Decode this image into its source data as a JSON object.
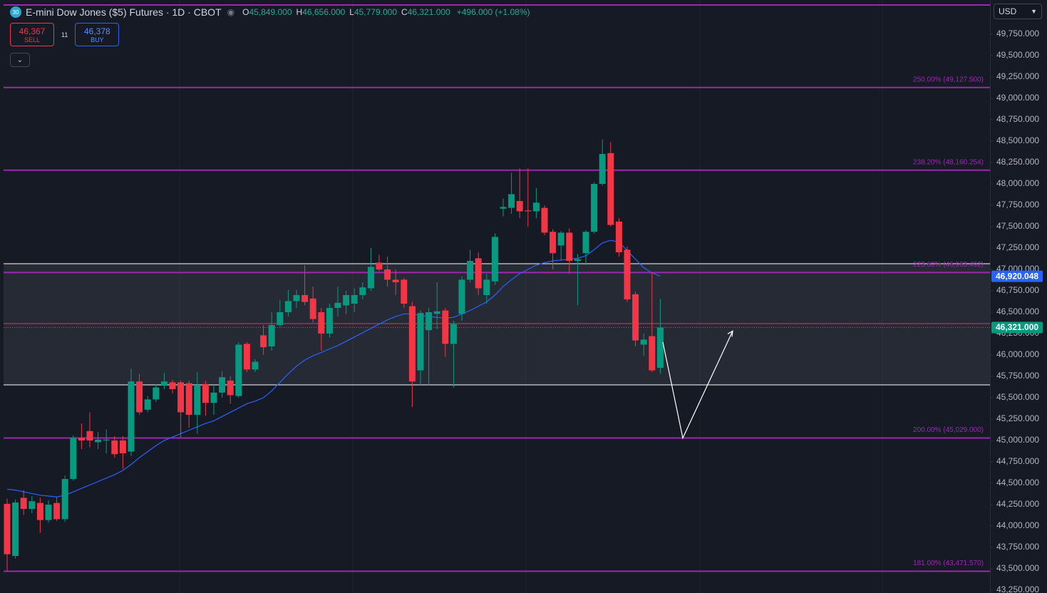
{
  "chart_data": {
    "type": "candlestick",
    "title": "E-mini Dow Jones ($5) Futures · 1D · CBOT",
    "symbol_badge": "30",
    "header_values": [
      {
        "key": "O",
        "value": 45849,
        "label": "45,849.000"
      },
      {
        "key": "H",
        "value": 46656,
        "label": "46,656.000"
      },
      {
        "key": "L",
        "value": 45779,
        "label": "45,779.000"
      },
      {
        "key": "C",
        "value": 46321,
        "label": "46,321.000"
      }
    ],
    "change_label": "+496.000 (+1.08%)",
    "sell": {
      "value": 46367,
      "label": "46,367",
      "text": "SELL"
    },
    "buy": {
      "value": 46378,
      "label": "46,378",
      "text": "BUY"
    },
    "spread": "11",
    "currency": "USD",
    "collapse_icon": "⌄",
    "colors": {
      "up": "#089981",
      "down": "#f23645",
      "line": "#2962ff",
      "level": "#9c27b0",
      "zone": "#ffffff"
    },
    "open": [
      44260,
      43650,
      44330,
      44200,
      44270,
      44070,
      44270,
      44080,
      44550,
      45030,
      45110,
      44980,
      45000,
      45000,
      45000,
      44870,
      45690,
      45360,
      45480,
      45640,
      45680,
      45680,
      45670,
      45300,
      45660,
      45440,
      45560,
      45700,
      45520,
      46130,
      45830,
      46230,
      46100,
      46350,
      46500,
      46630,
      46700,
      46660,
      46500,
      46250,
      46550,
      46580,
      46600,
      46700,
      46780,
      47080,
      47000,
      46880,
      46880,
      46570,
      45820,
      46290,
      46480,
      46520,
      46130,
      46480,
      46880,
      47130,
      46700,
      46860,
      47710,
      47720,
      47800,
      47690,
      47680,
      47720,
      47440,
      47280,
      47430,
      47100,
      47190,
      47440,
      48000,
      48360,
      47560,
      47230,
      46710,
      46120,
      46220,
      45849
    ],
    "high": [
      44320,
      44310,
      44420,
      44350,
      44330,
      44300,
      44340,
      44590,
      45060,
      45200,
      45330,
      45100,
      45130,
      45050,
      45050,
      45840,
      45780,
      45520,
      45660,
      45790,
      45710,
      45700,
      45700,
      45800,
      45700,
      45650,
      45810,
      45750,
      46150,
      46150,
      45950,
      46350,
      46500,
      46640,
      46760,
      46760,
      47050,
      46800,
      46550,
      46600,
      46800,
      46750,
      46780,
      46850,
      47250,
      47170,
      47150,
      47000,
      46900,
      46620,
      46520,
      46550,
      46850,
      46550,
      46400,
      46920,
      47230,
      47200,
      46950,
      47420,
      47830,
      48130,
      48180,
      48180,
      47950,
      47750,
      47470,
      47450,
      47480,
      47180,
      47460,
      48020,
      48520,
      48490,
      47600,
      47270,
      46740,
      46250,
      46970,
      46656
    ],
    "low": [
      43480,
      43620,
      44130,
      44150,
      43920,
      44040,
      44060,
      44050,
      44530,
      44900,
      44920,
      44900,
      44850,
      44800,
      44670,
      44820,
      45300,
      45330,
      45450,
      45600,
      45550,
      45030,
      45150,
      45080,
      45290,
      45300,
      45500,
      45430,
      45500,
      45800,
      45800,
      46000,
      46050,
      46330,
      46450,
      46550,
      46580,
      46380,
      46050,
      46200,
      46450,
      46480,
      46500,
      46650,
      46750,
      46980,
      46800,
      46700,
      46550,
      45390,
      45640,
      45650,
      46300,
      45980,
      45620,
      46400,
      46850,
      46700,
      46600,
      46820,
      47620,
      47650,
      47600,
      47500,
      47600,
      47400,
      47000,
      47100,
      46950,
      46580,
      47050,
      47420,
      47980,
      47500,
      47150,
      46620,
      46100,
      45990,
      45800,
      45779
    ],
    "close": [
      43670,
      44275,
      44200,
      44290,
      44070,
      44250,
      44080,
      44550,
      45030,
      45000,
      45000,
      45010,
      45010,
      44840,
      44850,
      45690,
      45330,
      45480,
      45620,
      45690,
      45600,
      45330,
      45300,
      45650,
      45440,
      45560,
      45740,
      45530,
      46120,
      45830,
      45920,
      46090,
      46350,
      46500,
      46630,
      46700,
      46620,
      46420,
      46250,
      46550,
      46610,
      46700,
      46700,
      46790,
      47030,
      47000,
      46880,
      46850,
      46600,
      45690,
      46490,
      46500,
      46510,
      46130,
      46360,
      46880,
      47100,
      46780,
      46880,
      47380,
      47730,
      47880,
      47680,
      47680,
      47780,
      47430,
      47190,
      47430,
      47100,
      47120,
      47440,
      48000,
      48350,
      47520,
      47200,
      46650,
      46170,
      46180,
      45820,
      46321
    ],
    "moving_average": {
      "values": [
        44430,
        44420,
        44400,
        44380,
        44360,
        44350,
        44340,
        44360,
        44400,
        44440,
        44480,
        44520,
        44560,
        44600,
        44650,
        44720,
        44800,
        44870,
        44940,
        45000,
        45040,
        45080,
        45120,
        45160,
        45200,
        45230,
        45280,
        45330,
        45380,
        45430,
        45460,
        45500,
        45580,
        45680,
        45780,
        45870,
        45940,
        45990,
        46030,
        46070,
        46110,
        46160,
        46210,
        46260,
        46310,
        46360,
        46410,
        46450,
        46480,
        46480,
        46460,
        46450,
        46440,
        46430,
        46440,
        46480,
        46520,
        46570,
        46620,
        46700,
        46800,
        46880,
        46950,
        47000,
        47050,
        47080,
        47100,
        47110,
        47120,
        47130,
        47160,
        47230,
        47310,
        47340,
        47320,
        47220,
        47120,
        47020,
        46960,
        46920.048
      ],
      "last_label": "46,920.048"
    },
    "close_label": "46,321.000",
    "levels": [
      {
        "value": 50092,
        "label": null
      },
      {
        "value": 49127.5,
        "label": "250.00% (49,127.500)"
      },
      {
        "value": 48160.254,
        "label": "238.20% (48,160.254)"
      },
      {
        "value": 46963.492,
        "label": "223.60% (46,963.492)"
      },
      {
        "value": 45029,
        "label": "200.00% (45,029.000)"
      },
      {
        "value": 43471.57,
        "label": "181.00% (43,471.570)"
      }
    ],
    "zone": [
      45650,
      47067
    ],
    "projection": [
      46150,
      45029,
      46280
    ],
    "ylim": [
      43217,
      50150
    ],
    "yticks": [
      {
        "value": 43250,
        "label": "43,250.000"
      },
      {
        "value": 43500,
        "label": "43,500.000"
      },
      {
        "value": 43750,
        "label": "43,750.000"
      },
      {
        "value": 44000,
        "label": "44,000.000"
      },
      {
        "value": 44250,
        "label": "44,250.000"
      },
      {
        "value": 44500,
        "label": "44,500.000"
      },
      {
        "value": 44750,
        "label": "44,750.000"
      },
      {
        "value": 45000,
        "label": "45,000.000"
      },
      {
        "value": 45250,
        "label": "45,250.000"
      },
      {
        "value": 45500,
        "label": "45,500.000"
      },
      {
        "value": 45750,
        "label": "45,750.000"
      },
      {
        "value": 46000,
        "label": "46,000.000"
      },
      {
        "value": 46250,
        "label": "46,250.000"
      },
      {
        "value": 46500,
        "label": "46,500.000"
      },
      {
        "value": 46750,
        "label": "46,750.000"
      },
      {
        "value": 47000,
        "label": "47,000.000"
      },
      {
        "value": 47250,
        "label": "47,250.000"
      },
      {
        "value": 47500,
        "label": "47,500.000"
      },
      {
        "value": 47750,
        "label": "47,750.000"
      },
      {
        "value": 48000,
        "label": "48,000.000"
      },
      {
        "value": 48250,
        "label": "48,250.000"
      },
      {
        "value": 48500,
        "label": "48,500.000"
      },
      {
        "value": 48750,
        "label": "48,750.000"
      },
      {
        "value": 49000,
        "label": "49,000.000"
      },
      {
        "value": 49250,
        "label": "49,250.000"
      },
      {
        "value": 49500,
        "label": "49,500.000"
      },
      {
        "value": 49750,
        "label": "49,750.000"
      }
    ]
  }
}
